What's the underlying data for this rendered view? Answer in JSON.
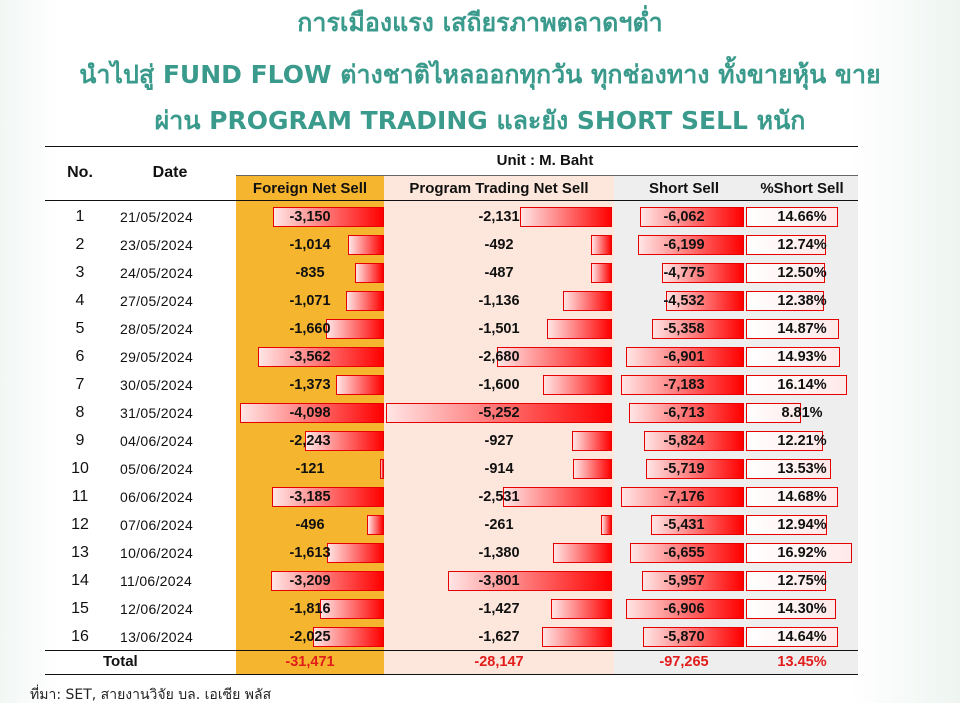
{
  "title": {
    "line1": "การเมืองแรง เสถียรภาพตลาดฯต่ำ",
    "line2": "นำไปสู่ FUND FLOW ต่างชาติไหลออกทุกวัน ทุกช่องทาง ทั้งขายหุ้น ขาย",
    "line3": "ผ่าน PROGRAM TRADING และยัง SHORT SELL หนัก"
  },
  "table": {
    "unit": "Unit : M. Baht",
    "headers": {
      "no": "No.",
      "date": "Date",
      "foreign": "Foreign Net Sell",
      "program": "Program Trading Net Sell",
      "short": "Short Sell",
      "pct": "%Short Sell"
    },
    "rows": [
      {
        "no": "1",
        "date": "21/05/2024",
        "foreign": "-3,150",
        "program": "-2,131",
        "short": "-6,062",
        "pct": "14.66%",
        "f": 3150,
        "p": 2131,
        "s": 6062,
        "r": 14.66
      },
      {
        "no": "2",
        "date": "23/05/2024",
        "foreign": "-1,014",
        "program": "-492",
        "short": "-6,199",
        "pct": "12.74%",
        "f": 1014,
        "p": 492,
        "s": 6199,
        "r": 12.74
      },
      {
        "no": "3",
        "date": "24/05/2024",
        "foreign": "-835",
        "program": "-487",
        "short": "-4,775",
        "pct": "12.50%",
        "f": 835,
        "p": 487,
        "s": 4775,
        "r": 12.5
      },
      {
        "no": "4",
        "date": "27/05/2024",
        "foreign": "-1,071",
        "program": "-1,136",
        "short": "-4,532",
        "pct": "12.38%",
        "f": 1071,
        "p": 1136,
        "s": 4532,
        "r": 12.38
      },
      {
        "no": "5",
        "date": "28/05/2024",
        "foreign": "-1,660",
        "program": "-1,501",
        "short": "-5,358",
        "pct": "14.87%",
        "f": 1660,
        "p": 1501,
        "s": 5358,
        "r": 14.87
      },
      {
        "no": "6",
        "date": "29/05/2024",
        "foreign": "-3,562",
        "program": "-2,680",
        "short": "-6,901",
        "pct": "14.93%",
        "f": 3562,
        "p": 2680,
        "s": 6901,
        "r": 14.93
      },
      {
        "no": "7",
        "date": "30/05/2024",
        "foreign": "-1,373",
        "program": "-1,600",
        "short": "-7,183",
        "pct": "16.14%",
        "f": 1373,
        "p": 1600,
        "s": 7183,
        "r": 16.14
      },
      {
        "no": "8",
        "date": "31/05/2024",
        "foreign": "-4,098",
        "program": "-5,252",
        "short": "-6,713",
        "pct": "8.81%",
        "f": 4098,
        "p": 5252,
        "s": 6713,
        "r": 8.81
      },
      {
        "no": "9",
        "date": "04/06/2024",
        "foreign": "-2,243",
        "program": "-927",
        "short": "-5,824",
        "pct": "12.21%",
        "f": 2243,
        "p": 927,
        "s": 5824,
        "r": 12.21
      },
      {
        "no": "10",
        "date": "05/06/2024",
        "foreign": "-121",
        "program": "-914",
        "short": "-5,719",
        "pct": "13.53%",
        "f": 121,
        "p": 914,
        "s": 5719,
        "r": 13.53
      },
      {
        "no": "11",
        "date": "06/06/2024",
        "foreign": "-3,185",
        "program": "-2,531",
        "short": "-7,176",
        "pct": "14.68%",
        "f": 3185,
        "p": 2531,
        "s": 7176,
        "r": 14.68
      },
      {
        "no": "12",
        "date": "07/06/2024",
        "foreign": "-496",
        "program": "-261",
        "short": "-5,431",
        "pct": "12.94%",
        "f": 496,
        "p": 261,
        "s": 5431,
        "r": 12.94
      },
      {
        "no": "13",
        "date": "10/06/2024",
        "foreign": "-1,613",
        "program": "-1,380",
        "short": "-6,655",
        "pct": "16.92%",
        "f": 1613,
        "p": 1380,
        "s": 6655,
        "r": 16.92
      },
      {
        "no": "14",
        "date": "11/06/2024",
        "foreign": "-3,209",
        "program": "-3,801",
        "short": "-5,957",
        "pct": "12.75%",
        "f": 3209,
        "p": 3801,
        "s": 5957,
        "r": 12.75
      },
      {
        "no": "15",
        "date": "12/06/2024",
        "foreign": "-1,816",
        "program": "-1,427",
        "short": "-6,906",
        "pct": "14.30%",
        "f": 1816,
        "p": 1427,
        "s": 6906,
        "r": 14.3
      },
      {
        "no": "16",
        "date": "13/06/2024",
        "foreign": "-2,025",
        "program": "-1,627",
        "short": "-5,870",
        "pct": "14.64%",
        "f": 2025,
        "p": 1627,
        "s": 5870,
        "r": 14.64
      }
    ],
    "total": {
      "label": "Total",
      "foreign": "-31,471",
      "program": "-28,147",
      "short": "-97,265",
      "pct": "13.45%"
    }
  },
  "source": "ที่มา: SET, สายงานวิจัย บล. เอเซีย พลัส",
  "colors": {
    "title": "#3a9a8c",
    "foreign_bg": "#f5b52e",
    "program_bg": "#fde7dc",
    "short_bg": "#eeeeee",
    "bar": "#ff0000",
    "total_text": "#e21b1b"
  }
}
